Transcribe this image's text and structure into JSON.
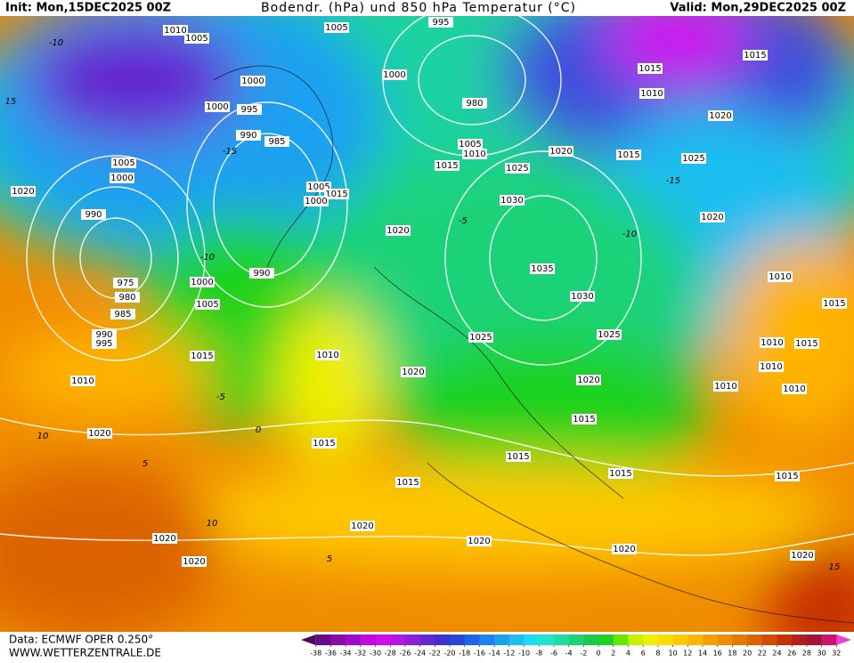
{
  "header": {
    "init": "Init: Mon,15DEC2025 00Z",
    "title": "Bodendr. (hPa) und 850 hPa Temperatur (°C)",
    "valid": "Valid: Mon,29DEC2025 00Z"
  },
  "isobar_labels": [
    "1010",
    "1005",
    "1005",
    "995",
    "1000",
    "1000",
    "1000",
    "995",
    "990",
    "985",
    "980",
    "1005",
    "1000",
    "1020",
    "990",
    "1005",
    "1015",
    "1000",
    "1005",
    "1010",
    "1015",
    "1025",
    "1020",
    "1015",
    "1030",
    "1020",
    "1035",
    "1030",
    "1025",
    "1025",
    "990",
    "975",
    "980",
    "985",
    "990",
    "995",
    "1000",
    "1005",
    "1015",
    "1010",
    "1020",
    "1020",
    "1010",
    "1020",
    "1015",
    "1015",
    "1015",
    "1015",
    "1015",
    "1015",
    "1020",
    "1020",
    "1020",
    "1020",
    "1020",
    "1020",
    "1015",
    "1010",
    "1015",
    "1020",
    "1025",
    "1020",
    "1010",
    "1015",
    "1010",
    "1015",
    "1010",
    "1010",
    "1010"
  ],
  "temperature_labels": [
    "-10",
    "-15",
    "-5",
    "0",
    "5",
    "10",
    "10",
    "15",
    "-10",
    "-5",
    "-15",
    "-10",
    "5",
    "15"
  ],
  "colorbar": {
    "ticks": [
      -38,
      -36,
      -34,
      -32,
      -30,
      -28,
      -26,
      -24,
      -22,
      -20,
      -18,
      -16,
      -14,
      -12,
      -10,
      -8,
      -6,
      -4,
      -2,
      0,
      2,
      4,
      6,
      8,
      10,
      12,
      14,
      16,
      18,
      20,
      22,
      24,
      26,
      28,
      30,
      32
    ],
    "colors": [
      "#4b0a5c",
      "#6a0a8a",
      "#8a0aaa",
      "#a00ac8",
      "#c00ae0",
      "#d20af0",
      "#b414e6",
      "#8c1edc",
      "#6428d2",
      "#3c32d2",
      "#2846dc",
      "#1e64e6",
      "#1e82f0",
      "#1ea0f0",
      "#1ebef0",
      "#1edcf0",
      "#1ee6c8",
      "#1edca0",
      "#1ed278",
      "#1ec850",
      "#1ed21e",
      "#64e600",
      "#c8f000",
      "#f0f000",
      "#ffdc00",
      "#ffc800",
      "#ffb400",
      "#f5a000",
      "#f08c00",
      "#e67800",
      "#dc6400",
      "#d24b00",
      "#c83200",
      "#b41e1e",
      "#a0143c",
      "#c8146e",
      "#f03cd2"
    ]
  },
  "footer": {
    "data": "Data: ECMWF OPER 0.250°",
    "site": "WWW.WETTERZENTRALE.DE"
  }
}
